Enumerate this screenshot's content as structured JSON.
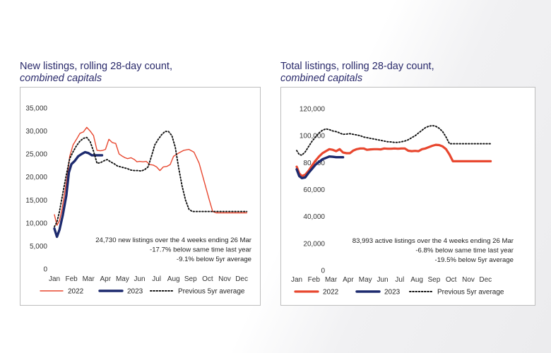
{
  "charts": [
    {
      "title": "New listings, rolling 28-day count,",
      "subtitle": "combined capitals",
      "annotations": [
        "24,730 new listings over the 4 weeks ending 26 Mar",
        "-17.7% below same time last year",
        "-9.1% below 5yr average"
      ]
    },
    {
      "title": "Total listings, rolling 28-day count,",
      "subtitle": "combined capitals",
      "annotations": [
        "83,993 active listings over the 4 weeks ending 26 Mar",
        "-6.8% below same time last year",
        "-19.5% below 5yr average"
      ]
    }
  ],
  "colors": {
    "s2022": "#e8472f",
    "s2023": "#1d2a6e",
    "avg": "#111111",
    "title": "#2a2a6b"
  },
  "chart_data": [
    {
      "type": "line",
      "title": "New listings, rolling 28-day count, combined capitals",
      "categories": [
        "Jan",
        "Feb",
        "Mar",
        "Apr",
        "May",
        "Jun",
        "Jul",
        "Aug",
        "Sep",
        "Oct",
        "Nov",
        "Dec"
      ],
      "y_ticks": [
        "0",
        "5,000",
        "10,000",
        "15,000",
        "20,000",
        "25,000",
        "30,000",
        "35,000"
      ],
      "ylim": [
        0,
        35000
      ],
      "legend_position": "bottom",
      "series": [
        {
          "name": "2022",
          "style": "solid-thin",
          "x": [
            0,
            0.15,
            0.3,
            0.45,
            0.6,
            0.75,
            0.9,
            1.1,
            1.3,
            1.5,
            1.7,
            1.9,
            2.1,
            2.3,
            2.5,
            2.7,
            2.85,
            3,
            3.2,
            3.4,
            3.6,
            3.8,
            4,
            4.15,
            4.3,
            4.5,
            4.7,
            4.85,
            5,
            5.2,
            5.4,
            5.6,
            5.8,
            6,
            6.2,
            6.4,
            6.6,
            6.8,
            7,
            7.3,
            7.6,
            7.9,
            8.2,
            8.5,
            8.8,
            9.1,
            9.3,
            9.5,
            9.7,
            9.9,
            10.1,
            10.3,
            10.5,
            10.7,
            10.9,
            11,
            11.1,
            11.2,
            11.3
          ],
          "y": [
            11800,
            9500,
            10500,
            13000,
            16500,
            20000,
            24500,
            27000,
            28200,
            29500,
            29800,
            30800,
            30000,
            29000,
            25800,
            25700,
            25800,
            26000,
            28200,
            27500,
            27300,
            25000,
            24500,
            24200,
            24000,
            24200,
            23800,
            23300,
            23400,
            23300,
            23400,
            22700,
            22600,
            22200,
            21400,
            22200,
            22300,
            22700,
            24500,
            25200,
            25800,
            26000,
            25400,
            23000,
            19000,
            15000,
            12500,
            12200,
            12200,
            12200,
            12200,
            12200,
            12200,
            12200,
            12200,
            12200,
            12200,
            12200,
            12200
          ]
        },
        {
          "name": "2023",
          "style": "solid-thick",
          "x": [
            0,
            0.15,
            0.3,
            0.5,
            0.7,
            0.85,
            1,
            1.2,
            1.4,
            1.6,
            1.8,
            2,
            2.2,
            2.4,
            2.6,
            2.8
          ],
          "y": [
            8800,
            7000,
            8500,
            11800,
            16000,
            21000,
            22800,
            23500,
            24500,
            25000,
            25400,
            25200,
            24730,
            24730,
            24730,
            24730
          ]
        },
        {
          "name": "Previous 5yr average",
          "style": "dotted",
          "x": [
            0,
            0.15,
            0.3,
            0.5,
            0.7,
            0.9,
            1.1,
            1.3,
            1.5,
            1.7,
            1.9,
            2.1,
            2.3,
            2.5,
            2.7,
            2.9,
            3.1,
            3.3,
            3.5,
            3.7,
            3.9,
            4.1,
            4.3,
            4.5,
            4.7,
            4.9,
            5.1,
            5.3,
            5.5,
            5.7,
            5.9,
            6.1,
            6.3,
            6.5,
            6.7,
            6.9,
            7.1,
            7.3,
            7.5,
            7.7,
            7.9,
            8.1,
            8.3,
            8.5,
            8.7,
            8.9,
            9.1,
            9.3,
            9.5,
            9.7,
            9.9,
            10.1,
            10.3,
            10.5,
            10.7,
            10.9,
            11.1,
            11.3
          ],
          "y": [
            9200,
            10200,
            12500,
            16500,
            20500,
            24000,
            25500,
            26800,
            27800,
            28400,
            28600,
            27700,
            25600,
            23000,
            23100,
            23500,
            23800,
            23300,
            22900,
            22400,
            22200,
            22000,
            21800,
            21500,
            21400,
            21400,
            21300,
            21600,
            22200,
            24500,
            27000,
            28200,
            29200,
            29900,
            29900,
            29000,
            26500,
            22000,
            18000,
            15000,
            13000,
            12500,
            12500,
            12500,
            12500,
            12500,
            12500,
            12500,
            12500,
            12500,
            12500,
            12500,
            12500,
            12500,
            12500,
            12500,
            12500,
            12500
          ]
        }
      ]
    },
    {
      "type": "line",
      "title": "Total listings, rolling 28-day count, combined capitals",
      "categories": [
        "Jan",
        "Feb",
        "Mar",
        "Apr",
        "May",
        "Jun",
        "Jul",
        "Aug",
        "Sep",
        "Oct",
        "Nov",
        "Dec"
      ],
      "y_ticks": [
        "0",
        "20,000",
        "40,000",
        "60,000",
        "80,000",
        "100,000",
        "120,000"
      ],
      "ylim": [
        0,
        120000
      ],
      "legend_position": "bottom",
      "series": [
        {
          "name": "2022",
          "style": "solid-thick",
          "x": [
            0,
            0.15,
            0.3,
            0.5,
            0.7,
            0.9,
            1.1,
            1.3,
            1.5,
            1.7,
            1.9,
            2.1,
            2.3,
            2.5,
            2.7,
            2.9,
            3.1,
            3.3,
            3.5,
            3.7,
            3.9,
            4.1,
            4.3,
            4.5,
            4.7,
            4.9,
            5.1,
            5.3,
            5.5,
            5.7,
            5.9,
            6.1,
            6.3,
            6.5,
            6.7,
            6.9,
            7.1,
            7.3,
            7.5,
            7.7,
            7.9,
            8.1,
            8.3,
            8.5,
            8.7,
            8.9,
            9.1,
            9.3,
            9.5,
            9.7,
            9.9,
            10.1,
            10.3,
            10.5,
            10.7,
            10.9,
            11.1,
            11.3
          ],
          "y": [
            77000,
            72000,
            70000,
            71000,
            74000,
            78000,
            81500,
            84500,
            87000,
            88500,
            90000,
            89500,
            88500,
            90000,
            87500,
            87000,
            87000,
            89000,
            90000,
            90500,
            90500,
            89500,
            89800,
            90000,
            90000,
            89800,
            90500,
            90300,
            90300,
            90500,
            90300,
            90500,
            90500,
            88800,
            88500,
            88700,
            88500,
            90000,
            90500,
            91500,
            92500,
            93200,
            93000,
            92000,
            90000,
            86000,
            81000,
            81000,
            81000,
            81000,
            81000,
            81000,
            81000,
            81000,
            81000,
            81000,
            81000,
            81000
          ]
        },
        {
          "name": "2023",
          "style": "solid-thick",
          "x": [
            0,
            0.15,
            0.3,
            0.5,
            0.7,
            0.9,
            1.1,
            1.3,
            1.5,
            1.7,
            1.9,
            2.1,
            2.3,
            2.5,
            2.7
          ],
          "y": [
            75000,
            70000,
            68500,
            69000,
            72500,
            75500,
            78500,
            80500,
            82500,
            83500,
            84500,
            84300,
            83993,
            83993,
            83993
          ]
        },
        {
          "name": "Previous 5yr average",
          "style": "dotted",
          "x": [
            0,
            0.15,
            0.3,
            0.5,
            0.7,
            0.9,
            1.1,
            1.3,
            1.5,
            1.7,
            1.9,
            2.1,
            2.3,
            2.5,
            2.7,
            2.9,
            3.1,
            3.3,
            3.5,
            3.7,
            3.9,
            4.1,
            4.3,
            4.5,
            4.7,
            4.9,
            5.1,
            5.3,
            5.5,
            5.7,
            5.9,
            6.1,
            6.3,
            6.5,
            6.7,
            6.9,
            7.1,
            7.3,
            7.5,
            7.7,
            7.9,
            8.1,
            8.3,
            8.5,
            8.7,
            8.9,
            9.1,
            9.3,
            9.5,
            9.7,
            9.9,
            10.1,
            10.3,
            10.5,
            10.7,
            10.9,
            11.1,
            11.3
          ],
          "y": [
            89000,
            86000,
            85500,
            88000,
            92000,
            96000,
            99000,
            102000,
            104000,
            105000,
            104500,
            103500,
            103000,
            102000,
            101000,
            101200,
            101500,
            101000,
            100500,
            100000,
            99000,
            98500,
            98000,
            97500,
            97000,
            96500,
            96000,
            95500,
            95300,
            95000,
            95000,
            95500,
            96000,
            97000,
            98500,
            100000,
            102000,
            104000,
            106000,
            107000,
            107500,
            107000,
            105500,
            103000,
            99000,
            94000,
            94000,
            94000,
            94000,
            94000,
            94000,
            94000,
            94000,
            94000,
            94000,
            94000,
            94000,
            94000
          ]
        }
      ]
    }
  ]
}
